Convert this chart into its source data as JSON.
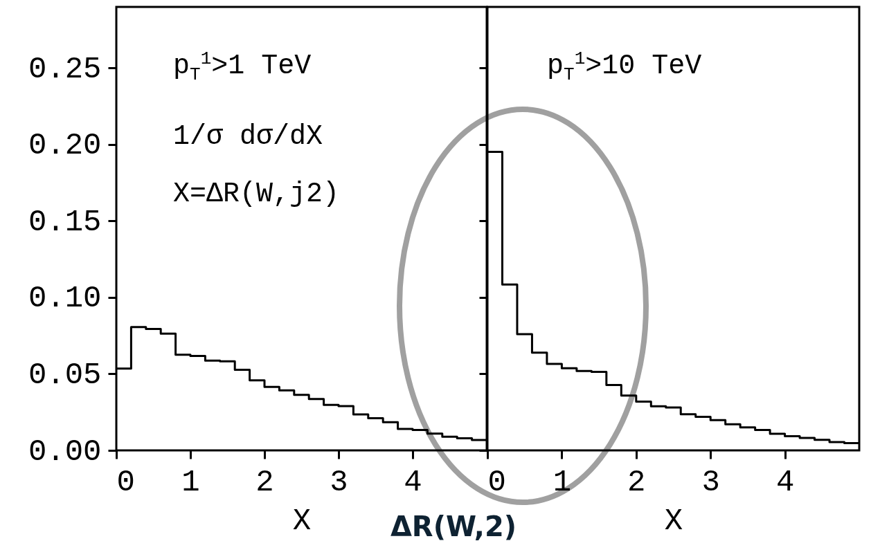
{
  "chart_data": [
    {
      "type": "histogram",
      "title": "p$_{T}$$^{1}$>1 TeV",
      "xlabel": "X",
      "color": "#000000",
      "annotations": [
        "1/σ dσ/dX",
        "X=ΔR(W,j2)"
      ],
      "bins": [
        0,
        0.2,
        0.4,
        0.6,
        0.8,
        1.0,
        1.2,
        1.4,
        1.6,
        1.8,
        2.0,
        2.2,
        2.4,
        2.6,
        2.8,
        3.0,
        3.2,
        3.4,
        3.6,
        3.8,
        4.0,
        4.2,
        4.4,
        4.6,
        4.8,
        5.0
      ],
      "values": [
        0.0535,
        0.0806,
        0.0794,
        0.0763,
        0.0626,
        0.0618,
        0.0587,
        0.0582,
        0.0527,
        0.0458,
        0.0415,
        0.0393,
        0.0363,
        0.0336,
        0.0298,
        0.0289,
        0.0235,
        0.021,
        0.0184,
        0.014,
        0.0134,
        0.011,
        0.0089,
        0.0079,
        0.0068
      ],
      "xlim": [
        0,
        5
      ],
      "ylim": [
        0,
        0.29
      ],
      "xticks": [
        0,
        1,
        2,
        3,
        4
      ],
      "yticks": [
        {
          "value": 0,
          "label": "0.00"
        },
        {
          "value": 0.05,
          "label": "0.05"
        },
        {
          "value": 0.1,
          "label": "0.10"
        },
        {
          "value": 0.15,
          "label": "0.15"
        },
        {
          "value": 0.2,
          "label": "0.20"
        },
        {
          "value": 0.25,
          "label": "0.25"
        }
      ]
    },
    {
      "type": "histogram",
      "title": "p$_{T}$$^{1}$>10 TeV",
      "xlabel": "X",
      "color": "#000000",
      "annotations": [
        "ΔR(W,2)"
      ],
      "bins": [
        0,
        0.2,
        0.4,
        0.6,
        0.8,
        1.0,
        1.2,
        1.4,
        1.6,
        1.8,
        2.0,
        2.2,
        2.4,
        2.6,
        2.8,
        3.0,
        3.2,
        3.4,
        3.6,
        3.8,
        4.0,
        4.2,
        4.4,
        4.6,
        4.8,
        5.0
      ],
      "values": [
        0.1952,
        0.1085,
        0.076,
        0.0639,
        0.0565,
        0.0537,
        0.0519,
        0.0513,
        0.0428,
        0.0359,
        0.0319,
        0.0288,
        0.028,
        0.0236,
        0.0219,
        0.0198,
        0.0171,
        0.015,
        0.0134,
        0.0109,
        0.0093,
        0.0081,
        0.0069,
        0.0054,
        0.0048
      ],
      "xlim": [
        0,
        5
      ],
      "ylim": [
        0,
        0.29
      ],
      "xticks": [
        0,
        1,
        2,
        3,
        4
      ],
      "yticks": [
        0,
        0.05,
        0.1,
        0.15,
        0.2,
        0.25
      ],
      "tick_labels": "x"
    }
  ]
}
